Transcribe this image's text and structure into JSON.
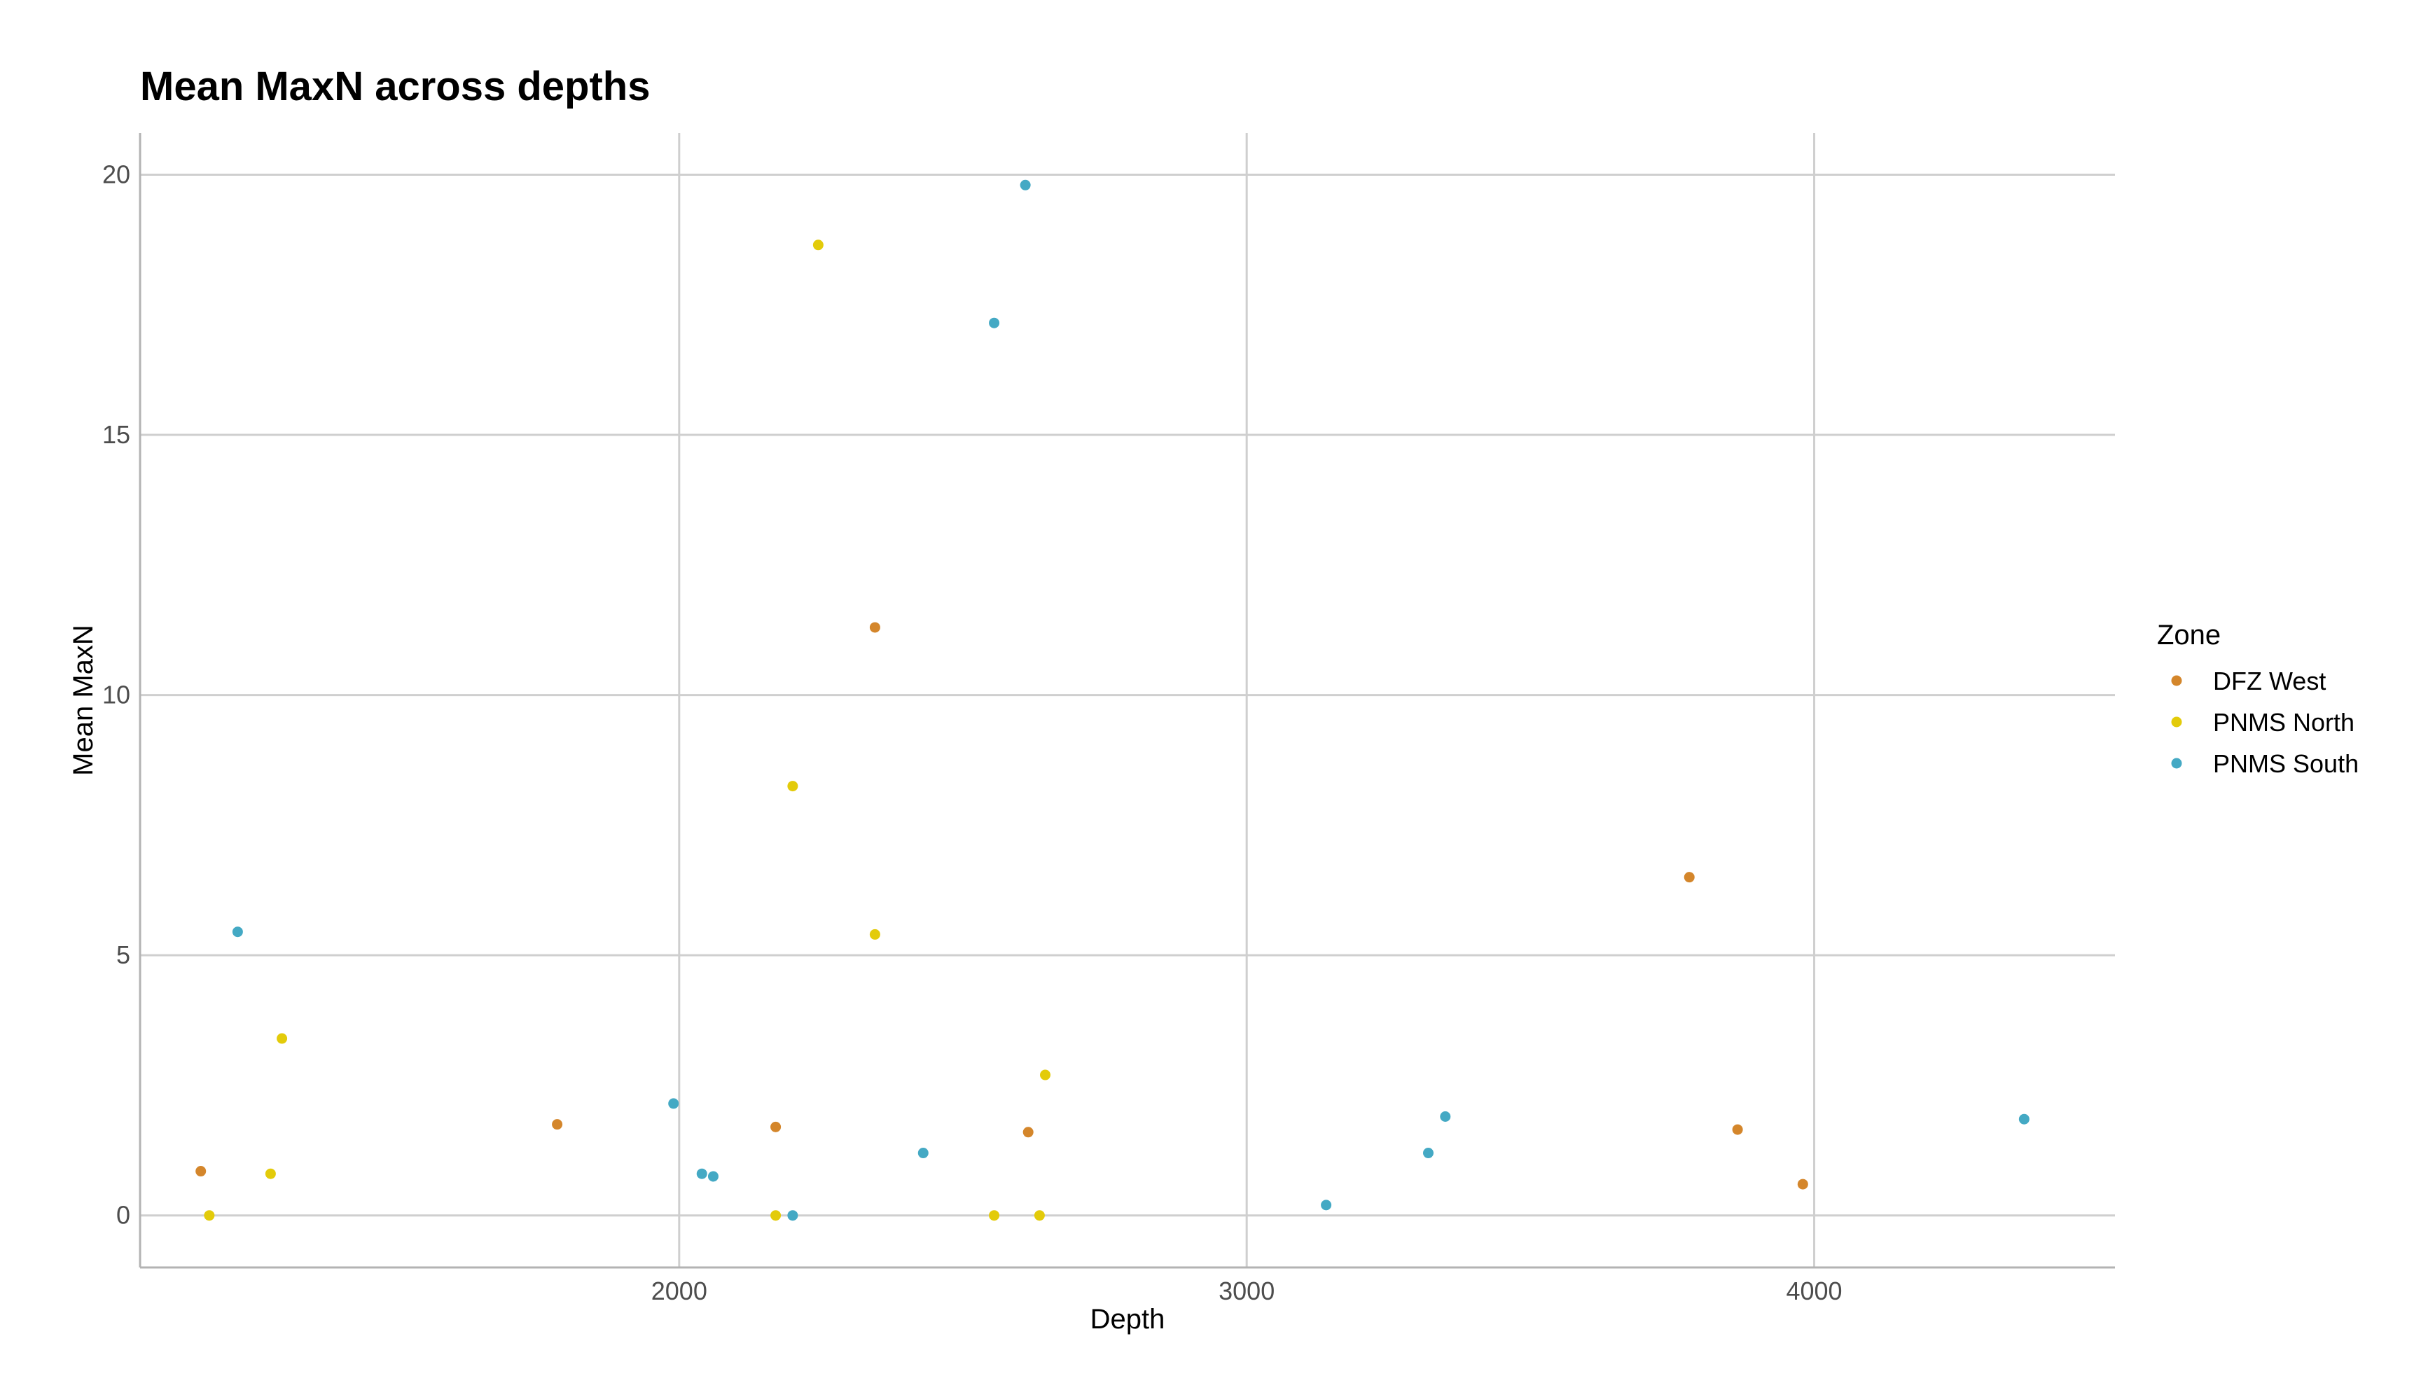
{
  "chart_data": {
    "type": "scatter",
    "title": "Mean MaxN across depths",
    "xlabel": "Depth",
    "ylabel": "Mean MaxN",
    "xlim": [
      1050,
      4530
    ],
    "ylim": [
      -1,
      20.8
    ],
    "xticks": [
      2000,
      3000,
      4000
    ],
    "yticks": [
      0,
      5,
      10,
      15,
      20
    ],
    "grid": true,
    "legend": {
      "title": "Zone",
      "position": "right"
    },
    "series": [
      {
        "name": "DFZ West",
        "color": "#d4862b",
        "points": [
          {
            "x": 1157,
            "y": 0.85
          },
          {
            "x": 1785,
            "y": 1.75
          },
          {
            "x": 2170,
            "y": 1.7
          },
          {
            "x": 2345,
            "y": 11.3
          },
          {
            "x": 2615,
            "y": 1.6
          },
          {
            "x": 3780,
            "y": 6.5
          },
          {
            "x": 3865,
            "y": 1.65
          },
          {
            "x": 3980,
            "y": 0.6
          }
        ]
      },
      {
        "name": "PNMS North",
        "color": "#e3cb0a",
        "points": [
          {
            "x": 1172,
            "y": 0.0
          },
          {
            "x": 1280,
            "y": 0.8
          },
          {
            "x": 1300,
            "y": 3.4
          },
          {
            "x": 2170,
            "y": 0.0
          },
          {
            "x": 2200,
            "y": 8.25
          },
          {
            "x": 2245,
            "y": 18.65
          },
          {
            "x": 2345,
            "y": 5.4
          },
          {
            "x": 2555,
            "y": 0.0
          },
          {
            "x": 2635,
            "y": 0.0
          },
          {
            "x": 2645,
            "y": 2.7
          }
        ]
      },
      {
        "name": "PNMS South",
        "color": "#44a9c4",
        "points": [
          {
            "x": 1222,
            "y": 5.45
          },
          {
            "x": 1990,
            "y": 2.15
          },
          {
            "x": 2040,
            "y": 0.8
          },
          {
            "x": 2060,
            "y": 0.75
          },
          {
            "x": 2200,
            "y": 0.0
          },
          {
            "x": 2430,
            "y": 1.2
          },
          {
            "x": 2555,
            "y": 17.15
          },
          {
            "x": 2610,
            "y": 19.8
          },
          {
            "x": 3140,
            "y": 0.2
          },
          {
            "x": 3320,
            "y": 1.2
          },
          {
            "x": 3350,
            "y": 1.9
          },
          {
            "x": 4370,
            "y": 1.85
          }
        ]
      }
    ]
  }
}
